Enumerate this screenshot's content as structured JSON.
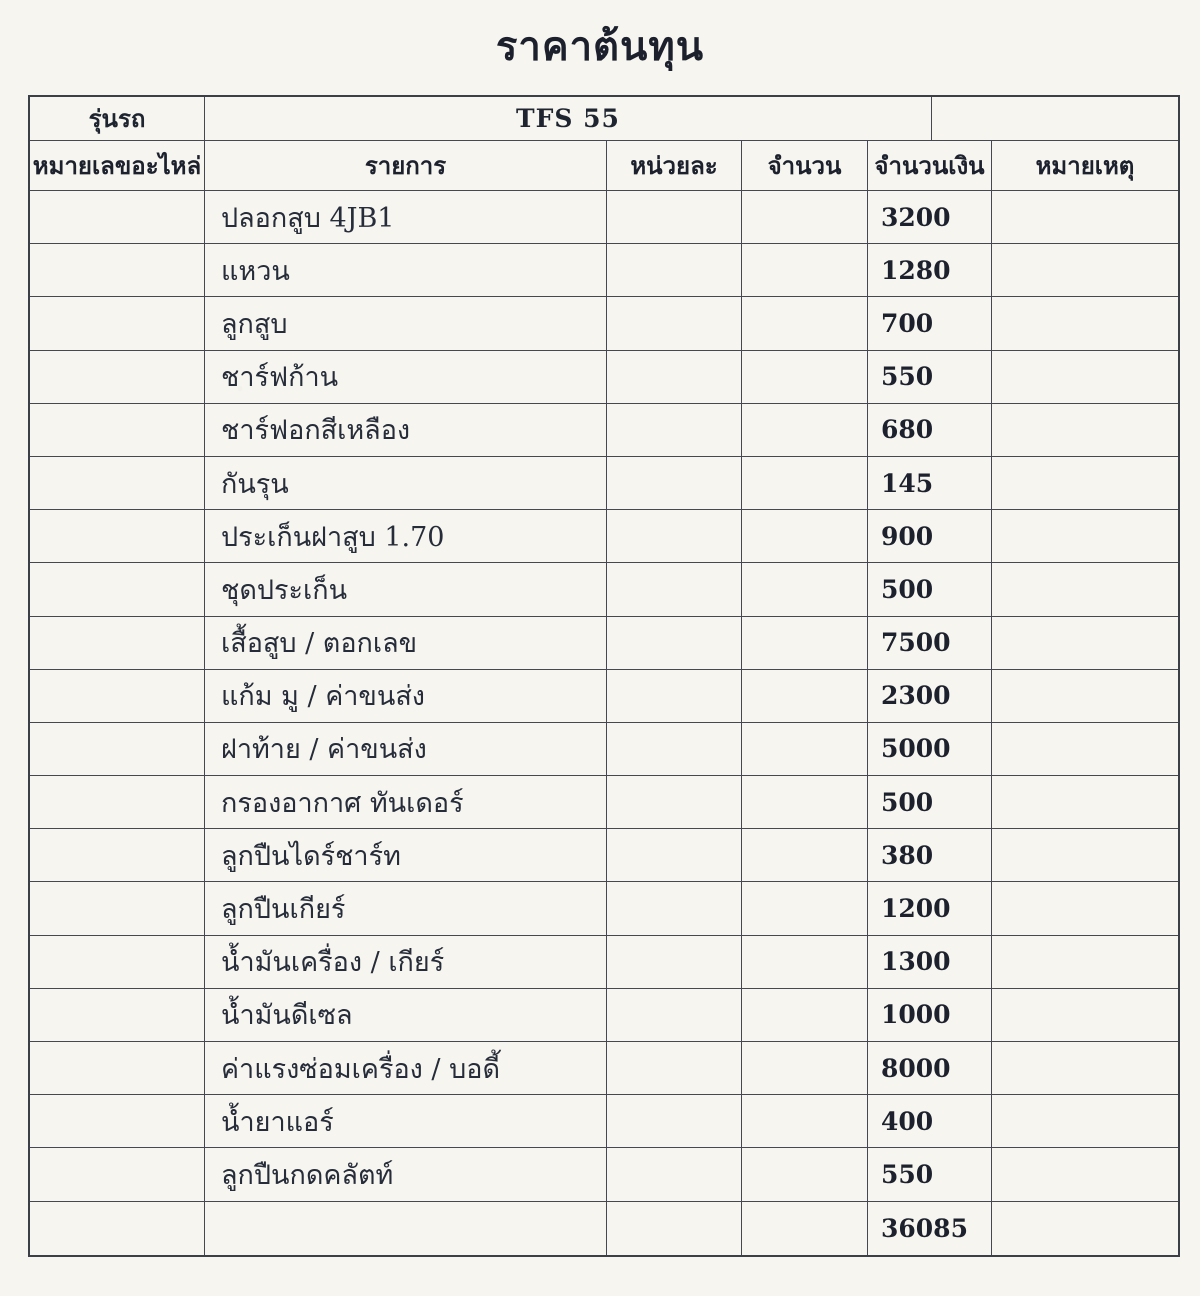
{
  "page": {
    "title": "ราคาต้นทุน"
  },
  "colors": {
    "paper": "#f6f5f0",
    "ink": "#1e2430",
    "grid_line": "#434853"
  },
  "table": {
    "model_row": {
      "label": "รุ่นรถ",
      "value": "TFS 55"
    },
    "headers": {
      "part_no": "หมายเลขอะไหล่",
      "item": "รายการ",
      "unit_price": "หน่วยละ",
      "quantity": "จำนวน",
      "amount": "จำนวนเงิน",
      "remarks": "หมายเหตุ"
    },
    "rows": [
      {
        "item": "ปลอกสูบ 4JB1",
        "amount": "3200"
      },
      {
        "item": "แหวน",
        "amount": "1280"
      },
      {
        "item": "ลูกสูบ",
        "amount": "700"
      },
      {
        "item": "ชาร์ฟก้าน",
        "amount": "550"
      },
      {
        "item": "ชาร์ฟอกสีเหลือง",
        "amount": "680"
      },
      {
        "item": "กันรุน",
        "amount": "145"
      },
      {
        "item": "ประเก็นฝาสูบ 1.70",
        "amount": "900"
      },
      {
        "item": "ชุดประเก็น",
        "amount": "500"
      },
      {
        "item": "เสื้อสูบ / ตอกเลข",
        "amount": "7500"
      },
      {
        "item": "แก้ม มู / ค่าขนส่ง",
        "amount": "2300"
      },
      {
        "item": "ฝาท้าย / ค่าขนส่ง",
        "amount": "5000"
      },
      {
        "item": "กรองอากาศ ทันเดอร์",
        "amount": "500"
      },
      {
        "item": "ลูกปืนไดร์ชาร์ท",
        "amount": "380"
      },
      {
        "item": "ลูกปืนเกียร์",
        "amount": "1200"
      },
      {
        "item": "น้ำมันเครื่อง / เกียร์",
        "amount": "1300"
      },
      {
        "item": "น้ำมันดีเซล",
        "amount": "1000"
      },
      {
        "item": "ค่าแรงซ่อมเครื่อง / บอดี้",
        "amount": "8000"
      },
      {
        "item": "น้ำยาแอร์",
        "amount": "400"
      },
      {
        "item": "ลูกปืนกดคลัตท์",
        "amount": "550"
      },
      {
        "item": "",
        "amount": "36085"
      }
    ],
    "total_amount": "36085"
  }
}
